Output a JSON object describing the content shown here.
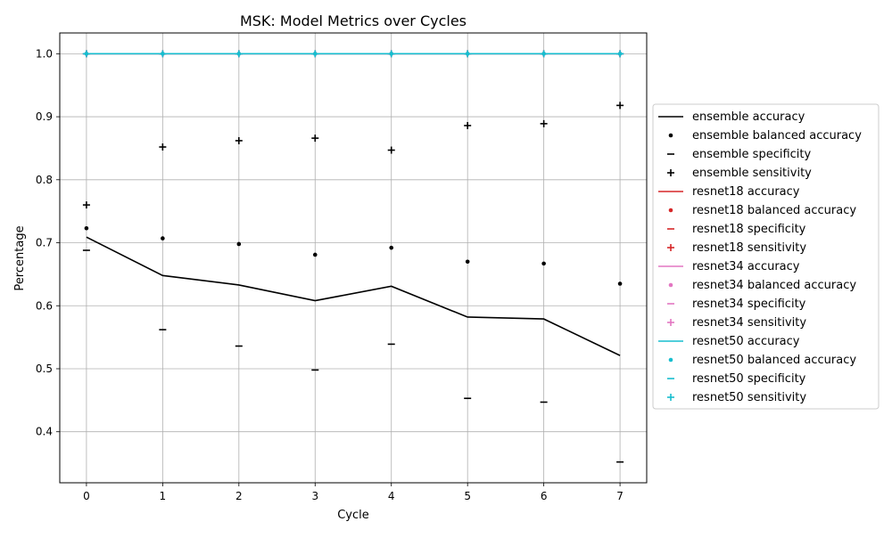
{
  "chart_data": {
    "type": "line",
    "title": "MSK: Model Metrics over Cycles",
    "xlabel": "Cycle",
    "ylabel": "Percentage",
    "x": [
      0,
      1,
      2,
      3,
      4,
      5,
      6,
      7
    ],
    "xlim": [
      -0.35,
      7.35
    ],
    "ylim": [
      0.319,
      1.033
    ],
    "xticks": [
      0,
      1,
      2,
      3,
      4,
      5,
      6,
      7
    ],
    "yticks": [
      0.4,
      0.5,
      0.6,
      0.7,
      0.8,
      0.9,
      1.0
    ],
    "grid": true,
    "legend_position": "outside-right",
    "series": [
      {
        "name": "ensemble accuracy",
        "model": "ensemble",
        "metric": "accuracy",
        "marker": "line",
        "color": "#000000",
        "values": [
          0.709,
          0.648,
          0.633,
          0.608,
          0.631,
          0.582,
          0.579,
          0.521
        ]
      },
      {
        "name": "ensemble balanced accuracy",
        "model": "ensemble",
        "metric": "balanced accuracy",
        "marker": "dot",
        "color": "#000000",
        "values": [
          0.723,
          0.707,
          0.698,
          0.681,
          0.692,
          0.67,
          0.667,
          0.635
        ]
      },
      {
        "name": "ensemble specificity",
        "model": "ensemble",
        "metric": "specificity",
        "marker": "dash",
        "color": "#000000",
        "values": [
          0.688,
          0.562,
          0.536,
          0.498,
          0.539,
          0.453,
          0.447,
          0.352
        ]
      },
      {
        "name": "ensemble sensitivity",
        "model": "ensemble",
        "metric": "sensitivity",
        "marker": "plus",
        "color": "#000000",
        "values": [
          0.76,
          0.852,
          0.862,
          0.866,
          0.847,
          0.886,
          0.889,
          0.918
        ]
      },
      {
        "name": "resnet18 accuracy",
        "model": "resnet18",
        "metric": "accuracy",
        "marker": "line",
        "color": "#d62728",
        "values": [
          1.0,
          1.0,
          1.0,
          1.0,
          1.0,
          1.0,
          1.0,
          1.0
        ]
      },
      {
        "name": "resnet18 balanced accuracy",
        "model": "resnet18",
        "metric": "balanced accuracy",
        "marker": "dot",
        "color": "#d62728",
        "values": [
          1.0,
          1.0,
          1.0,
          1.0,
          1.0,
          1.0,
          1.0,
          1.0
        ]
      },
      {
        "name": "resnet18 specificity",
        "model": "resnet18",
        "metric": "specificity",
        "marker": "dash",
        "color": "#d62728",
        "values": [
          1.0,
          1.0,
          1.0,
          1.0,
          1.0,
          1.0,
          1.0,
          1.0
        ]
      },
      {
        "name": "resnet18 sensitivity",
        "model": "resnet18",
        "metric": "sensitivity",
        "marker": "plus",
        "color": "#d62728",
        "values": [
          1.0,
          1.0,
          1.0,
          1.0,
          1.0,
          1.0,
          1.0,
          1.0
        ]
      },
      {
        "name": "resnet34 accuracy",
        "model": "resnet34",
        "metric": "accuracy",
        "marker": "line",
        "color": "#e377c2",
        "values": [
          1.0,
          1.0,
          1.0,
          1.0,
          1.0,
          1.0,
          1.0,
          1.0
        ]
      },
      {
        "name": "resnet34 balanced accuracy",
        "model": "resnet34",
        "metric": "balanced accuracy",
        "marker": "dot",
        "color": "#e377c2",
        "values": [
          1.0,
          1.0,
          1.0,
          1.0,
          1.0,
          1.0,
          1.0,
          1.0
        ]
      },
      {
        "name": "resnet34 specificity",
        "model": "resnet34",
        "metric": "specificity",
        "marker": "dash",
        "color": "#e377c2",
        "values": [
          1.0,
          1.0,
          1.0,
          1.0,
          1.0,
          1.0,
          1.0,
          1.0
        ]
      },
      {
        "name": "resnet34 sensitivity",
        "model": "resnet34",
        "metric": "sensitivity",
        "marker": "plus",
        "color": "#e377c2",
        "values": [
          1.0,
          1.0,
          1.0,
          1.0,
          1.0,
          1.0,
          1.0,
          1.0
        ]
      },
      {
        "name": "resnet50 accuracy",
        "model": "resnet50",
        "metric": "accuracy",
        "marker": "line",
        "color": "#17becf",
        "values": [
          1.0,
          1.0,
          1.0,
          1.0,
          1.0,
          1.0,
          1.0,
          1.0
        ]
      },
      {
        "name": "resnet50 balanced accuracy",
        "model": "resnet50",
        "metric": "balanced accuracy",
        "marker": "dot",
        "color": "#17becf",
        "values": [
          1.0,
          1.0,
          1.0,
          1.0,
          1.0,
          1.0,
          1.0,
          1.0
        ]
      },
      {
        "name": "resnet50 specificity",
        "model": "resnet50",
        "metric": "specificity",
        "marker": "dash",
        "color": "#17becf",
        "values": [
          1.0,
          1.0,
          1.0,
          1.0,
          1.0,
          1.0,
          1.0,
          1.0
        ]
      },
      {
        "name": "resnet50 sensitivity",
        "model": "resnet50",
        "metric": "sensitivity",
        "marker": "plus",
        "color": "#17becf",
        "values": [
          1.0,
          1.0,
          1.0,
          1.0,
          1.0,
          1.0,
          1.0,
          1.0
        ]
      }
    ]
  }
}
